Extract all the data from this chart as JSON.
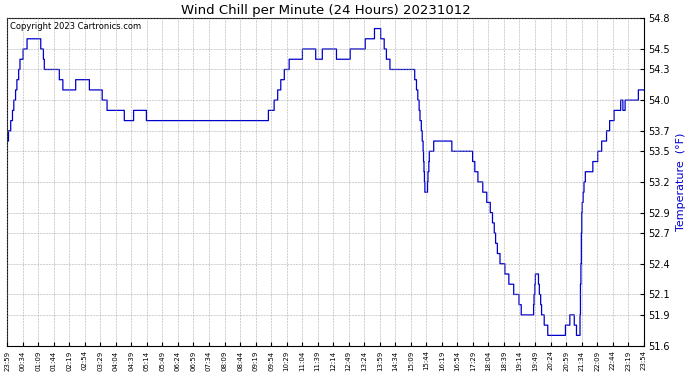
{
  "title": "Wind Chill per Minute (24 Hours) 20231012",
  "ylabel": "Temperature  (°F)",
  "copyright_text": "Copyright 2023 Cartronics.com",
  "line_color": "#0000cc",
  "background_color": "#ffffff",
  "grid_color": "#999999",
  "ylabel_color": "#0000cc",
  "ylim": [
    51.6,
    54.8
  ],
  "yticks": [
    51.6,
    51.9,
    52.1,
    52.4,
    52.7,
    52.9,
    53.2,
    53.5,
    53.7,
    54.0,
    54.3,
    54.5,
    54.8
  ],
  "xtick_labels": [
    "23:59",
    "00:34",
    "01:09",
    "01:44",
    "02:19",
    "02:54",
    "03:29",
    "04:04",
    "04:39",
    "05:14",
    "05:49",
    "06:24",
    "06:59",
    "07:34",
    "08:09",
    "08:44",
    "09:19",
    "09:54",
    "10:29",
    "11:04",
    "11:39",
    "12:14",
    "12:49",
    "13:24",
    "13:59",
    "14:34",
    "15:09",
    "15:44",
    "16:19",
    "16:54",
    "17:29",
    "18:04",
    "18:39",
    "19:14",
    "19:49",
    "20:24",
    "20:59",
    "21:34",
    "22:09",
    "22:44",
    "23:19",
    "23:54"
  ]
}
